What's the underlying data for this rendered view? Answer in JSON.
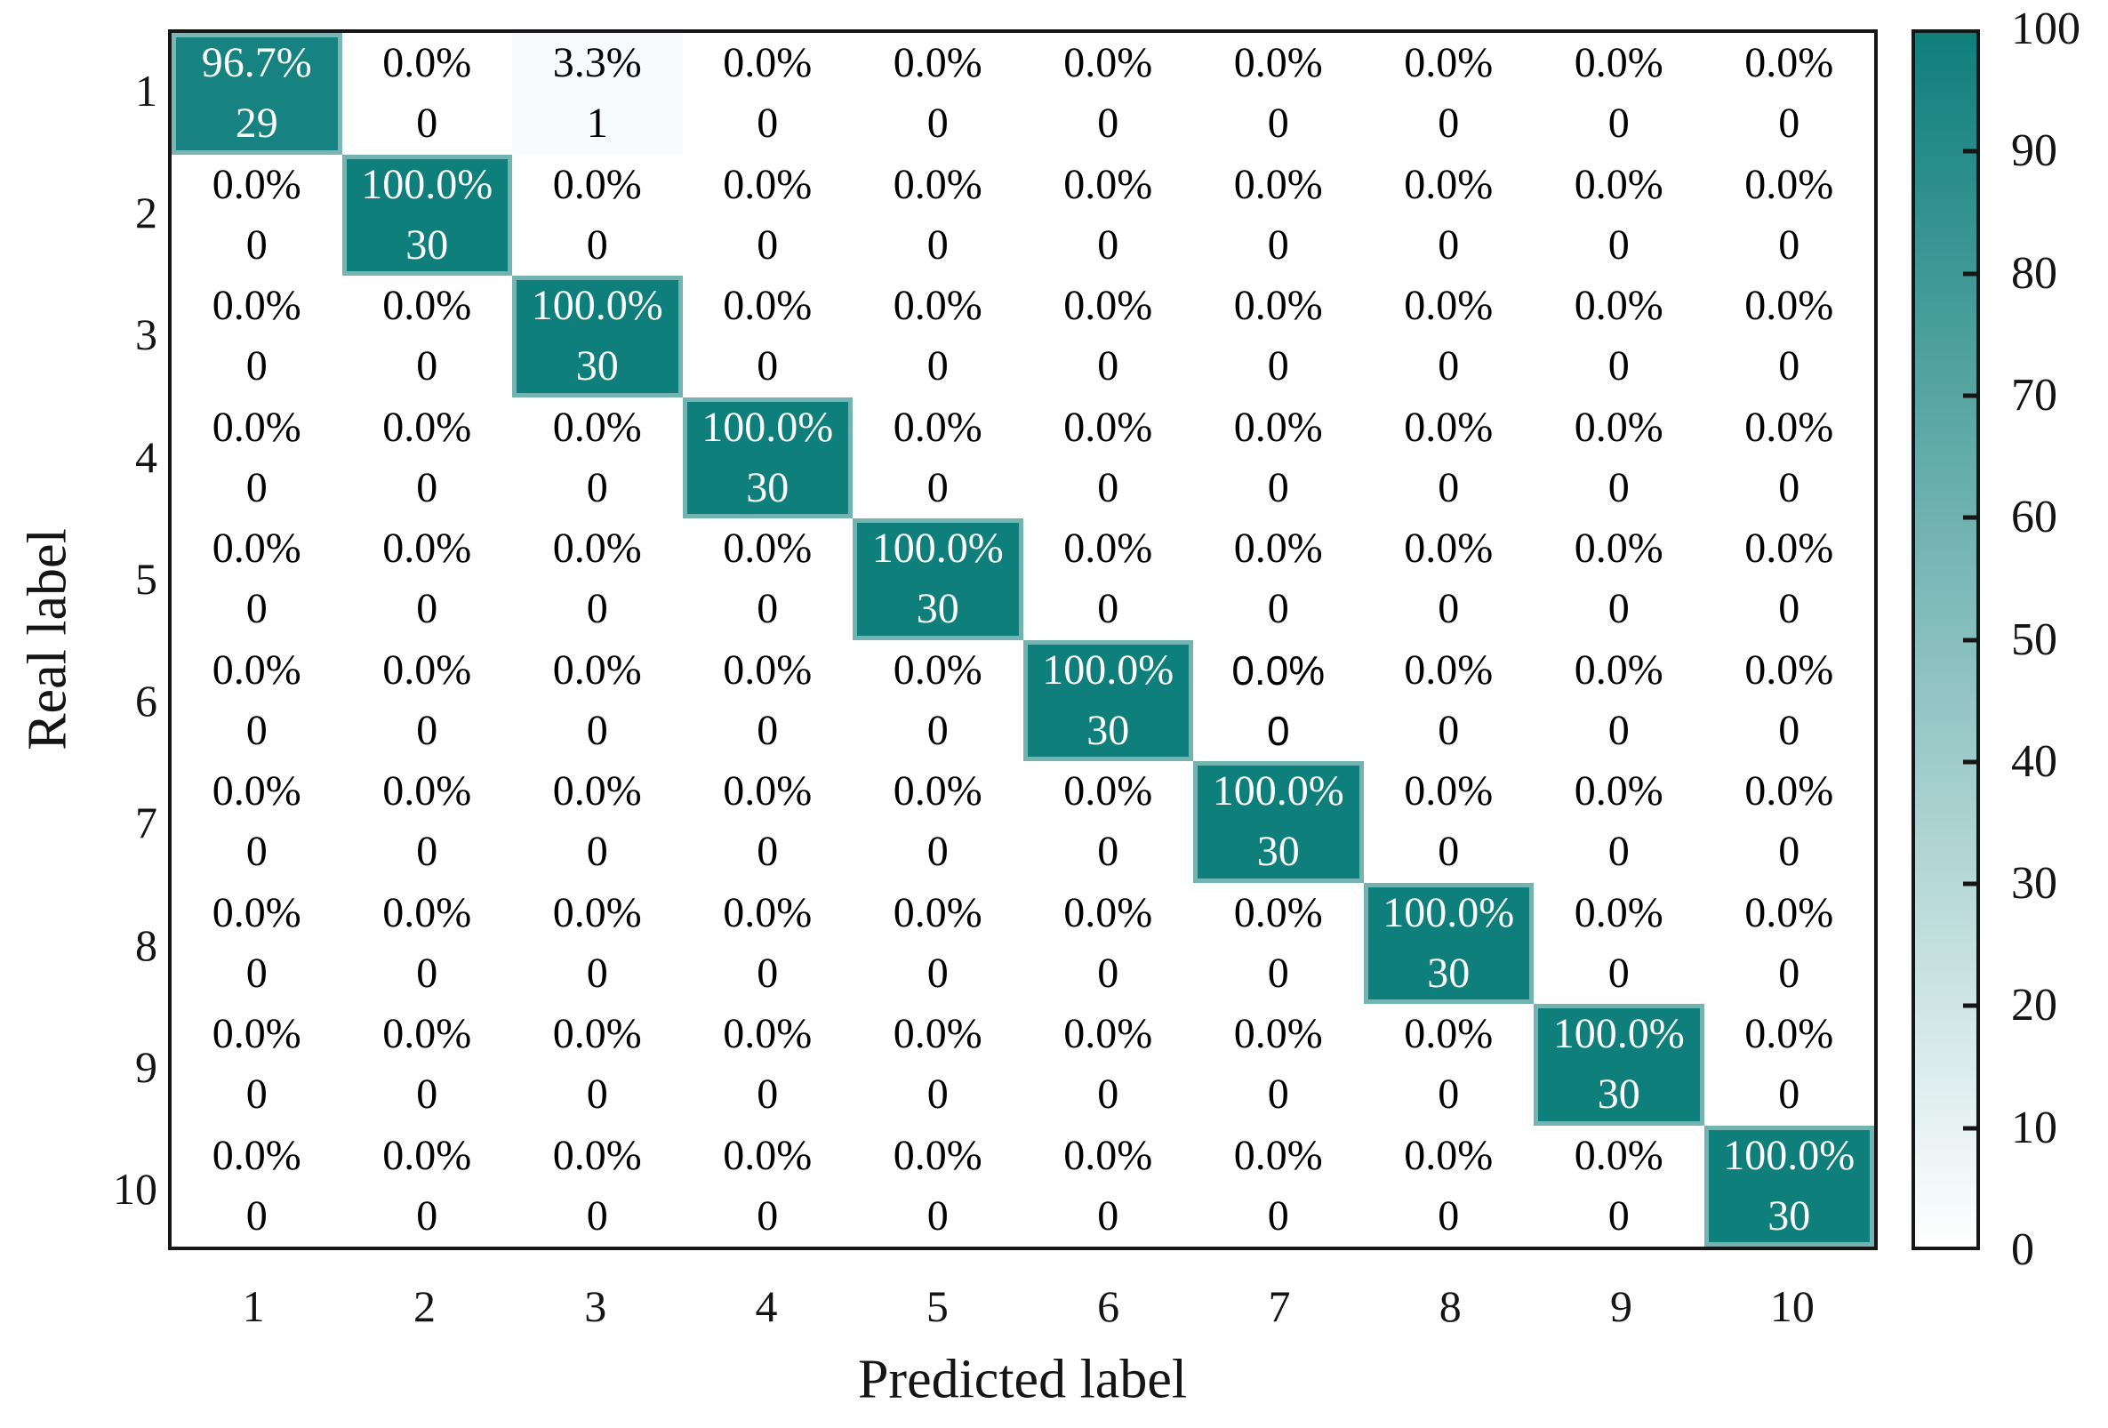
{
  "chart_data": {
    "type": "heatmap",
    "subtype": "confusion-matrix",
    "title": "",
    "xlabel": "Predicted label",
    "ylabel": "Real label",
    "x_tick_labels": [
      "1",
      "2",
      "3",
      "4",
      "5",
      "6",
      "7",
      "8",
      "9",
      "10"
    ],
    "y_tick_labels": [
      "1",
      "2",
      "3",
      "4",
      "5",
      "6",
      "7",
      "8",
      "9",
      "10"
    ],
    "percent_matrix": [
      [
        96.7,
        0.0,
        3.3,
        0.0,
        0.0,
        0.0,
        0.0,
        0.0,
        0.0,
        0.0
      ],
      [
        0.0,
        100.0,
        0.0,
        0.0,
        0.0,
        0.0,
        0.0,
        0.0,
        0.0,
        0.0
      ],
      [
        0.0,
        0.0,
        100.0,
        0.0,
        0.0,
        0.0,
        0.0,
        0.0,
        0.0,
        0.0
      ],
      [
        0.0,
        0.0,
        0.0,
        100.0,
        0.0,
        0.0,
        0.0,
        0.0,
        0.0,
        0.0
      ],
      [
        0.0,
        0.0,
        0.0,
        0.0,
        100.0,
        0.0,
        0.0,
        0.0,
        0.0,
        0.0
      ],
      [
        0.0,
        0.0,
        0.0,
        0.0,
        0.0,
        100.0,
        0.0,
        0.0,
        0.0,
        0.0
      ],
      [
        0.0,
        0.0,
        0.0,
        0.0,
        0.0,
        0.0,
        100.0,
        0.0,
        0.0,
        0.0
      ],
      [
        0.0,
        0.0,
        0.0,
        0.0,
        0.0,
        0.0,
        0.0,
        100.0,
        0.0,
        0.0
      ],
      [
        0.0,
        0.0,
        0.0,
        0.0,
        0.0,
        0.0,
        0.0,
        0.0,
        100.0,
        0.0
      ],
      [
        0.0,
        0.0,
        0.0,
        0.0,
        0.0,
        0.0,
        0.0,
        0.0,
        0.0,
        100.0
      ]
    ],
    "count_matrix": [
      [
        29,
        0,
        1,
        0,
        0,
        0,
        0,
        0,
        0,
        0
      ],
      [
        0,
        30,
        0,
        0,
        0,
        0,
        0,
        0,
        0,
        0
      ],
      [
        0,
        0,
        30,
        0,
        0,
        0,
        0,
        0,
        0,
        0
      ],
      [
        0,
        0,
        0,
        30,
        0,
        0,
        0,
        0,
        0,
        0
      ],
      [
        0,
        0,
        0,
        0,
        30,
        0,
        0,
        0,
        0,
        0
      ],
      [
        0,
        0,
        0,
        0,
        0,
        30,
        0,
        0,
        0,
        0
      ],
      [
        0,
        0,
        0,
        0,
        0,
        0,
        30,
        0,
        0,
        0
      ],
      [
        0,
        0,
        0,
        0,
        0,
        0,
        0,
        30,
        0,
        0
      ],
      [
        0,
        0,
        0,
        0,
        0,
        0,
        0,
        0,
        30,
        0
      ],
      [
        0,
        0,
        0,
        0,
        0,
        0,
        0,
        0,
        0,
        30
      ]
    ],
    "percent_decimals": 1,
    "anomaly_sans_cell": {
      "row": 6,
      "col": 7
    },
    "colorbar": {
      "min": 0,
      "max": 100,
      "tick_labels": [
        "0",
        "10",
        "20",
        "30",
        "40",
        "50",
        "60",
        "70",
        "80",
        "90",
        "100"
      ],
      "marked_ticks": [
        10,
        20,
        30,
        40,
        50,
        60,
        70,
        80,
        90
      ],
      "position": "right"
    },
    "colors": {
      "high": "#0f7f7c",
      "low": "#ffffff",
      "axis": "#161616",
      "text_on_low": "#000000",
      "text_on_high": "#ffffff"
    },
    "grid": false,
    "legend": false
  }
}
